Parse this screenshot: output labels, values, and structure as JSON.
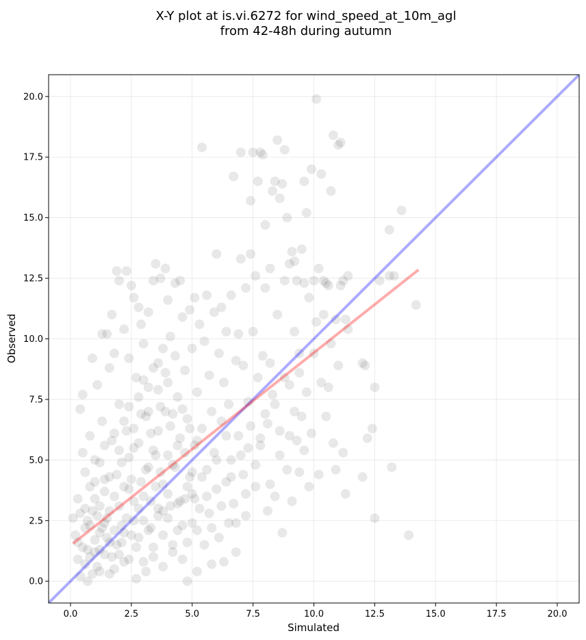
{
  "chart_data": {
    "type": "scatter",
    "title": "X-Y plot at is.vi.6272 for wind_speed_at_10m_agl",
    "subtitle": "from 42-48h during autumn",
    "xlabel": "Simulated",
    "ylabel": "Observed",
    "xlim": [
      -0.9,
      20.9
    ],
    "ylim": [
      -0.9,
      20.9
    ],
    "xticks": [
      0.0,
      2.5,
      5.0,
      7.5,
      10.0,
      12.5,
      15.0,
      17.5,
      20.0
    ],
    "yticks": [
      0.0,
      2.5,
      5.0,
      7.5,
      10.0,
      12.5,
      15.0,
      17.5,
      20.0
    ],
    "xtick_labels": [
      "0.0",
      "2.5",
      "5.0",
      "7.5",
      "10.0",
      "12.5",
      "15.0",
      "17.5",
      "20.0"
    ],
    "ytick_labels": [
      "0.0",
      "2.5",
      "5.0",
      "7.5",
      "10.0",
      "12.5",
      "15.0",
      "17.5",
      "20.0"
    ],
    "grid": true,
    "colors": {
      "points": "#000000",
      "identity_line": "#0000ff",
      "fit_line": "#ff0000"
    },
    "identity_line": {
      "x": [
        -0.9,
        20.9
      ],
      "y": [
        -0.9,
        20.9
      ]
    },
    "fit_line": {
      "x": [
        0.1,
        14.3
      ],
      "y": [
        1.55,
        12.85
      ]
    },
    "points": [
      [
        0.1,
        2.6
      ],
      [
        0.2,
        1.9
      ],
      [
        0.3,
        0.9
      ],
      [
        0.3,
        3.4
      ],
      [
        0.4,
        0.2
      ],
      [
        0.4,
        7.1
      ],
      [
        0.5,
        7.7
      ],
      [
        0.5,
        5.3
      ],
      [
        0.6,
        4.5
      ],
      [
        0.6,
        2.2
      ],
      [
        0.7,
        1.3
      ],
      [
        0.7,
        0.0
      ],
      [
        0.8,
        3.9
      ],
      [
        0.8,
        6.0
      ],
      [
        0.9,
        9.2
      ],
      [
        0.9,
        2.9
      ],
      [
        1.0,
        1.7
      ],
      [
        1.0,
        5.0
      ],
      [
        1.1,
        0.6
      ],
      [
        1.1,
        8.1
      ],
      [
        1.2,
        3.1
      ],
      [
        1.2,
        2.0
      ],
      [
        1.3,
        6.6
      ],
      [
        1.3,
        10.2
      ],
      [
        1.4,
        4.2
      ],
      [
        1.4,
        1.1
      ],
      [
        1.5,
        10.2
      ],
      [
        1.5,
        2.6
      ],
      [
        1.6,
        8.8
      ],
      [
        1.6,
        0.3
      ],
      [
        1.7,
        5.8
      ],
      [
        1.7,
        11.0
      ],
      [
        1.8,
        3.5
      ],
      [
        1.8,
        9.4
      ],
      [
        1.9,
        12.8
      ],
      [
        1.9,
        1.5
      ],
      [
        2.0,
        7.3
      ],
      [
        2.0,
        12.4
      ],
      [
        2.1,
        4.9
      ],
      [
        2.1,
        2.3
      ],
      [
        2.2,
        10.4
      ],
      [
        2.2,
        0.8
      ],
      [
        2.3,
        12.8
      ],
      [
        2.3,
        6.2
      ],
      [
        2.4,
        3.8
      ],
      [
        2.4,
        9.2
      ],
      [
        2.5,
        12.2
      ],
      [
        2.5,
        1.9
      ],
      [
        2.6,
        11.7
      ],
      [
        2.6,
        5.5
      ],
      [
        2.7,
        0.1
      ],
      [
        2.7,
        8.4
      ],
      [
        2.8,
        3.0
      ],
      [
        2.8,
        11.3
      ],
      [
        2.9,
        10.6
      ],
      [
        2.9,
        6.9
      ],
      [
        3.0,
        2.5
      ],
      [
        3.0,
        9.8
      ],
      [
        3.1,
        4.6
      ],
      [
        3.1,
        0.4
      ],
      [
        3.2,
        8.0
      ],
      [
        3.2,
        11.1
      ],
      [
        3.3,
        3.3
      ],
      [
        3.3,
        6.1
      ],
      [
        3.4,
        12.4
      ],
      [
        3.4,
        1.4
      ],
      [
        3.5,
        13.1
      ],
      [
        3.5,
        5.2
      ],
      [
        3.6,
        9.0
      ],
      [
        3.6,
        2.7
      ],
      [
        3.7,
        7.2
      ],
      [
        3.7,
        12.5
      ],
      [
        3.8,
        4.0
      ],
      [
        3.8,
        0.6
      ],
      [
        3.9,
        12.9
      ],
      [
        3.9,
        8.6
      ],
      [
        4.0,
        11.6
      ],
      [
        4.0,
        3.6
      ],
      [
        4.1,
        6.4
      ],
      [
        4.1,
        10.1
      ],
      [
        4.2,
        1.2
      ],
      [
        4.2,
        4.8
      ],
      [
        4.3,
        12.3
      ],
      [
        4.3,
        9.3
      ],
      [
        4.4,
        2.1
      ],
      [
        4.4,
        7.6
      ],
      [
        4.5,
        12.4
      ],
      [
        4.5,
        5.9
      ],
      [
        4.6,
        0.9
      ],
      [
        4.6,
        10.9
      ],
      [
        4.7,
        3.4
      ],
      [
        4.7,
        8.7
      ],
      [
        4.8,
        6.7
      ],
      [
        4.8,
        0.0
      ],
      [
        4.9,
        11.2
      ],
      [
        4.9,
        4.3
      ],
      [
        5.0,
        2.4
      ],
      [
        5.0,
        9.6
      ],
      [
        5.1,
        11.7
      ],
      [
        5.1,
        5.6
      ],
      [
        5.2,
        0.4
      ],
      [
        5.2,
        7.8
      ],
      [
        5.3,
        10.6
      ],
      [
        5.3,
        3.0
      ],
      [
        5.4,
        17.9
      ],
      [
        5.4,
        6.3
      ],
      [
        5.5,
        9.9
      ],
      [
        5.5,
        1.5
      ],
      [
        5.6,
        11.8
      ],
      [
        5.6,
        4.6
      ],
      [
        5.7,
        8.5
      ],
      [
        5.7,
        2.8
      ],
      [
        5.8,
        7.0
      ],
      [
        5.8,
        0.7
      ],
      [
        5.9,
        11.1
      ],
      [
        5.9,
        5.3
      ],
      [
        6.0,
        13.5
      ],
      [
        6.0,
        3.8
      ],
      [
        6.1,
        9.4
      ],
      [
        6.1,
        1.8
      ],
      [
        6.2,
        11.3
      ],
      [
        6.2,
        6.6
      ],
      [
        6.3,
        0.8
      ],
      [
        6.3,
        8.2
      ],
      [
        6.4,
        4.1
      ],
      [
        6.4,
        10.3
      ],
      [
        6.5,
        2.4
      ],
      [
        6.5,
        7.3
      ],
      [
        6.6,
        11.8
      ],
      [
        6.6,
        5.0
      ],
      [
        6.7,
        16.7
      ],
      [
        6.7,
        3.2
      ],
      [
        6.8,
        9.1
      ],
      [
        6.8,
        1.2
      ],
      [
        6.9,
        10.2
      ],
      [
        6.9,
        6.0
      ],
      [
        7.0,
        17.7
      ],
      [
        7.0,
        13.3
      ],
      [
        7.1,
        4.4
      ],
      [
        7.1,
        8.9
      ],
      [
        7.2,
        2.7
      ],
      [
        7.2,
        12.1
      ],
      [
        7.3,
        7.4
      ],
      [
        7.3,
        5.5
      ],
      [
        7.4,
        15.7
      ],
      [
        7.4,
        13.5
      ],
      [
        7.5,
        17.7
      ],
      [
        7.5,
        10.3
      ],
      [
        7.6,
        3.9
      ],
      [
        7.6,
        12.6
      ],
      [
        7.7,
        16.5
      ],
      [
        7.7,
        8.4
      ],
      [
        7.8,
        17.7
      ],
      [
        7.8,
        5.9
      ],
      [
        7.9,
        17.6
      ],
      [
        7.9,
        9.3
      ],
      [
        8.0,
        14.7
      ],
      [
        8.0,
        12.1
      ],
      [
        8.1,
        6.5
      ],
      [
        8.1,
        2.9
      ],
      [
        8.2,
        12.9
      ],
      [
        8.2,
        9.0
      ],
      [
        8.3,
        16.1
      ],
      [
        8.3,
        7.7
      ],
      [
        8.4,
        16.5
      ],
      [
        8.4,
        3.5
      ],
      [
        8.5,
        18.2
      ],
      [
        8.5,
        11.0
      ],
      [
        8.6,
        15.8
      ],
      [
        8.6,
        6.2
      ],
      [
        8.7,
        16.4
      ],
      [
        8.7,
        2.0
      ],
      [
        8.8,
        17.8
      ],
      [
        8.8,
        12.4
      ],
      [
        8.9,
        15.0
      ],
      [
        8.9,
        4.6
      ],
      [
        9.0,
        13.1
      ],
      [
        9.0,
        8.1
      ],
      [
        9.1,
        13.6
      ],
      [
        9.1,
        3.3
      ],
      [
        9.2,
        13.2
      ],
      [
        9.2,
        10.3
      ],
      [
        9.3,
        12.4
      ],
      [
        9.3,
        5.8
      ],
      [
        9.4,
        9.4
      ],
      [
        9.4,
        4.5
      ],
      [
        9.5,
        13.7
      ],
      [
        9.5,
        6.8
      ],
      [
        9.6,
        16.5
      ],
      [
        9.6,
        12.3
      ],
      [
        9.7,
        15.2
      ],
      [
        9.7,
        7.8
      ],
      [
        9.8,
        11.7
      ],
      [
        9.8,
        3.9
      ],
      [
        9.9,
        17.0
      ],
      [
        9.9,
        6.1
      ],
      [
        10.0,
        12.4
      ],
      [
        10.0,
        9.4
      ],
      [
        10.1,
        19.9
      ],
      [
        10.1,
        10.7
      ],
      [
        10.2,
        12.9
      ],
      [
        10.2,
        4.4
      ],
      [
        10.3,
        16.8
      ],
      [
        10.3,
        8.2
      ],
      [
        10.4,
        12.4
      ],
      [
        10.4,
        11.0
      ],
      [
        10.5,
        12.3
      ],
      [
        10.5,
        6.8
      ],
      [
        10.6,
        8.0
      ],
      [
        10.6,
        12.2
      ],
      [
        10.7,
        16.1
      ],
      [
        10.7,
        9.8
      ],
      [
        10.8,
        18.4
      ],
      [
        10.8,
        5.7
      ],
      [
        10.9,
        4.6
      ],
      [
        10.9,
        10.8
      ],
      [
        11.0,
        18.0
      ],
      [
        11.0,
        8.9
      ],
      [
        11.1,
        18.1
      ],
      [
        11.1,
        12.2
      ],
      [
        11.2,
        12.4
      ],
      [
        11.2,
        5.3
      ],
      [
        11.3,
        3.6
      ],
      [
        11.3,
        10.8
      ],
      [
        11.4,
        12.6
      ],
      [
        11.4,
        10.4
      ],
      [
        12.0,
        9.0
      ],
      [
        12.0,
        4.3
      ],
      [
        12.1,
        8.9
      ],
      [
        12.2,
        5.9
      ],
      [
        12.4,
        6.3
      ],
      [
        12.5,
        2.6
      ],
      [
        12.5,
        8.0
      ],
      [
        12.7,
        12.4
      ],
      [
        13.1,
        14.5
      ],
      [
        13.1,
        12.6
      ],
      [
        13.2,
        4.7
      ],
      [
        13.3,
        12.6
      ],
      [
        13.6,
        15.3
      ],
      [
        13.9,
        1.9
      ],
      [
        14.2,
        11.4
      ],
      [
        0.5,
        1.4
      ],
      [
        0.6,
        3.0
      ],
      [
        0.7,
        2.5
      ],
      [
        0.8,
        1.0
      ],
      [
        0.9,
        0.3
      ],
      [
        1.0,
        3.4
      ],
      [
        1.1,
        2.7
      ],
      [
        1.2,
        1.3
      ],
      [
        1.3,
        2.2
      ],
      [
        1.4,
        3.7
      ],
      [
        1.5,
        1.8
      ],
      [
        1.6,
        2.9
      ],
      [
        1.7,
        1.0
      ],
      [
        1.8,
        2.1
      ],
      [
        1.9,
        4.4
      ],
      [
        2.0,
        3.1
      ],
      [
        2.1,
        1.6
      ],
      [
        2.2,
        3.9
      ],
      [
        2.3,
        2.6
      ],
      [
        2.4,
        5.1
      ],
      [
        2.5,
        4.2
      ],
      [
        2.6,
        3.3
      ],
      [
        2.7,
        1.4
      ],
      [
        2.8,
        5.7
      ],
      [
        2.9,
        4.1
      ],
      [
        3.0,
        3.5
      ],
      [
        3.1,
        6.8
      ],
      [
        3.2,
        4.7
      ],
      [
        3.3,
        2.2
      ],
      [
        3.4,
        5.4
      ],
      [
        3.5,
        3.9
      ],
      [
        3.6,
        6.2
      ],
      [
        3.7,
        4.5
      ],
      [
        3.8,
        2.9
      ],
      [
        3.9,
        7.0
      ],
      [
        4.0,
        5.2
      ],
      [
        4.1,
        3.1
      ],
      [
        4.2,
        6.9
      ],
      [
        4.3,
        4.7
      ],
      [
        4.4,
        5.6
      ],
      [
        4.5,
        3.3
      ],
      [
        4.6,
        7.1
      ],
      [
        4.7,
        5.3
      ],
      [
        4.8,
        3.9
      ],
      [
        4.9,
        6.3
      ],
      [
        5.0,
        4.5
      ],
      [
        5.1,
        3.4
      ],
      [
        5.2,
        5.8
      ],
      [
        1.0,
        4.1
      ],
      [
        1.2,
        4.9
      ],
      [
        1.4,
        5.6
      ],
      [
        1.6,
        4.3
      ],
      [
        1.8,
        6.1
      ],
      [
        2.0,
        5.4
      ],
      [
        2.2,
        6.6
      ],
      [
        2.4,
        7.2
      ],
      [
        2.6,
        6.3
      ],
      [
        2.8,
        7.6
      ],
      [
        3.0,
        8.3
      ],
      [
        3.2,
        7.0
      ],
      [
        3.4,
        8.8
      ],
      [
        3.6,
        7.9
      ],
      [
        3.8,
        9.6
      ],
      [
        4.0,
        8.2
      ],
      [
        0.3,
        1.6
      ],
      [
        0.4,
        2.8
      ],
      [
        0.6,
        0.7
      ],
      [
        0.8,
        2.3
      ],
      [
        1.0,
        1.2
      ],
      [
        1.2,
        0.4
      ],
      [
        1.4,
        2.4
      ],
      [
        1.6,
        1.6
      ],
      [
        1.8,
        0.5
      ],
      [
        2.0,
        1.1
      ],
      [
        2.2,
        2.0
      ],
      [
        2.4,
        0.9
      ],
      [
        2.6,
        2.5
      ],
      [
        2.8,
        1.8
      ],
      [
        3.0,
        0.8
      ],
      [
        3.2,
        2.1
      ],
      [
        3.4,
        1.0
      ],
      [
        3.6,
        3.0
      ],
      [
        3.8,
        1.9
      ],
      [
        4.0,
        2.6
      ],
      [
        4.2,
        1.5
      ],
      [
        4.4,
        3.2
      ],
      [
        4.6,
        2.3
      ],
      [
        4.8,
        1.6
      ],
      [
        5.0,
        3.6
      ],
      [
        5.2,
        2.1
      ],
      [
        5.4,
        4.3
      ],
      [
        5.6,
        3.5
      ],
      [
        5.8,
        2.2
      ],
      [
        6.0,
        5.0
      ],
      [
        6.2,
        3.1
      ],
      [
        6.4,
        6.0
      ],
      [
        6.6,
        4.3
      ],
      [
        6.8,
        2.4
      ],
      [
        7.0,
        5.2
      ],
      [
        7.2,
        3.6
      ],
      [
        7.4,
        6.4
      ],
      [
        7.6,
        4.8
      ],
      [
        7.8,
        5.6
      ],
      [
        8.0,
        6.9
      ],
      [
        8.2,
        4.0
      ],
      [
        8.4,
        7.3
      ],
      [
        8.6,
        5.2
      ],
      [
        8.8,
        8.4
      ],
      [
        9.0,
        6.0
      ],
      [
        9.2,
        7.0
      ],
      [
        9.4,
        8.6
      ],
      [
        9.6,
        5.4
      ]
    ]
  }
}
